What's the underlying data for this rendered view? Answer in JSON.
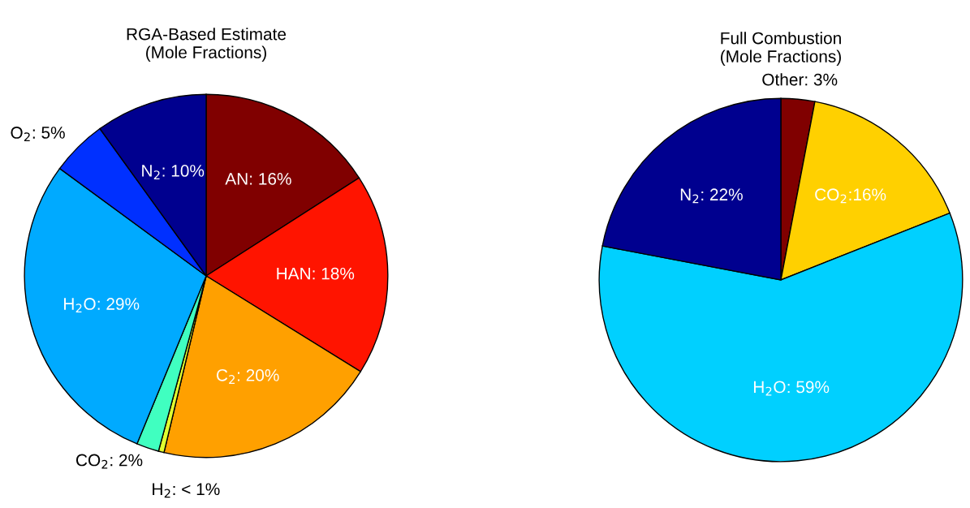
{
  "chart_data": [
    {
      "type": "pie",
      "title": "RGA-Based Estimate\n(Mole Fractions)",
      "categories": [
        "AN",
        "HAN",
        "C$_{2}$",
        "H$_{2}$",
        "CO$_{2}$",
        "H$_{2}$O",
        "O$_{2}$",
        "N$_{2}$"
      ],
      "values": [
        16,
        18,
        20,
        0.5,
        2,
        29,
        5,
        10
      ],
      "value_labels": [
        ": 16%",
        ": 18%",
        ": 20%",
        ": < 1%",
        ": 2%",
        ": 29%",
        ": 5%",
        ": 10%"
      ],
      "colors": [
        "#800000",
        "#ff1400",
        "#ffa000",
        "#e0ff30",
        "#40ffc0",
        "#00aaff",
        "#0030ff",
        "#00008f"
      ]
    },
    {
      "type": "pie",
      "title": "Full Combustion\n(Mole Fractions)",
      "categories": [
        "Other",
        "CO$_{2}$",
        "H$_{2}$O",
        "N$_{2}$"
      ],
      "values": [
        3,
        16,
        59,
        22
      ],
      "value_labels": [
        ": 3%",
        ":16%",
        ": 59%",
        ": 22%"
      ],
      "colors": [
        "#800000",
        "#ffd000",
        "#00d0ff",
        "#00008f"
      ]
    }
  ]
}
